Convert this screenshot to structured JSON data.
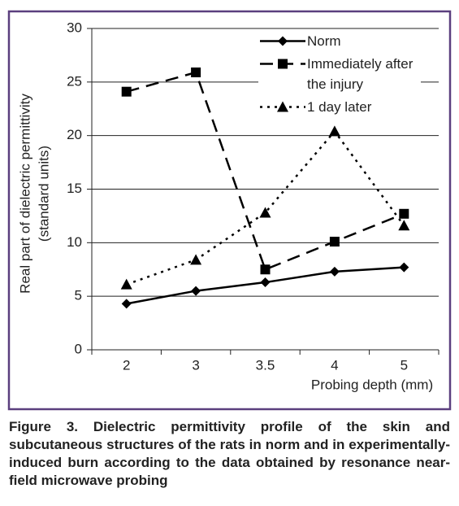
{
  "chart_data": {
    "type": "line",
    "xlabel": "Probing depth (mm)",
    "ylabel": [
      "Real part of dielectric permittivity",
      "(standard units)"
    ],
    "categories": [
      "2",
      "3",
      "3.5",
      "4",
      "5"
    ],
    "series": [
      {
        "name": "Norm",
        "color": "#000000",
        "dash": "solid",
        "marker": "diamond",
        "values": [
          4.3,
          5.5,
          6.3,
          7.3,
          7.7
        ]
      },
      {
        "name": "Immediately after the injury",
        "color": "#000000",
        "dash": "dashed",
        "marker": "square",
        "values": [
          24.1,
          25.9,
          7.5,
          10.1,
          12.7
        ]
      },
      {
        "name": "1 day later",
        "color": "#000000",
        "dash": "dotted",
        "marker": "triangle",
        "values": [
          6.1,
          8.4,
          12.8,
          20.4,
          11.6
        ]
      }
    ],
    "ylim": [
      0,
      30
    ],
    "yticks": [
      0,
      5,
      10,
      15,
      20,
      25,
      30
    ],
    "grid": true
  },
  "caption": "Figure 3. Dielectric permittivity profile of the skin and subcutaneous structures of the rats in norm and in experimentally-induced burn according to the data obtained by resonance near-field microwave probing"
}
